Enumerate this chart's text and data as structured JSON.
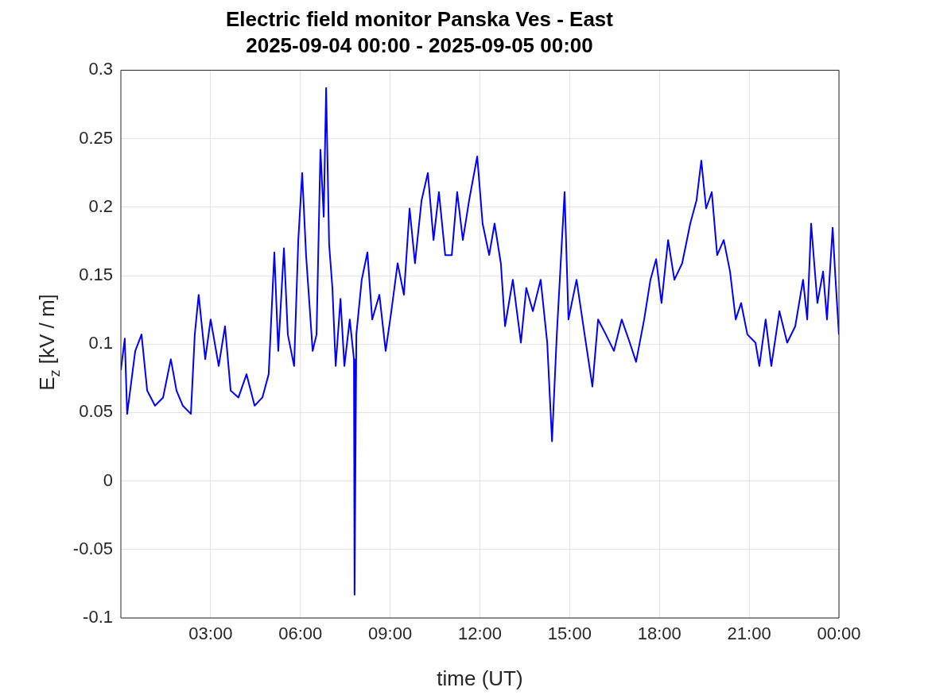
{
  "chart_data": {
    "type": "line",
    "title": "Electric field monitor Panska Ves - East",
    "subtitle": "2025-09-04 00:00 - 2025-09-05 00:00",
    "xlabel": "time (UT)",
    "ylabel": "E$_{z}$ [kV / m]",
    "x": [
      0,
      0.13,
      0.21,
      0.48,
      0.69,
      0.88,
      1.14,
      1.41,
      1.67,
      1.86,
      2.07,
      2.34,
      2.47,
      2.6,
      2.82,
      3.0,
      3.27,
      3.48,
      3.67,
      3.93,
      4.2,
      4.47,
      4.73,
      4.94,
      5.13,
      5.26,
      5.45,
      5.58,
      5.79,
      5.93,
      6.06,
      6.19,
      6.41,
      6.54,
      6.67,
      6.78,
      6.86,
      6.96,
      7.07,
      7.18,
      7.34,
      7.47,
      7.65,
      7.79,
      7.81,
      7.87,
      8.05,
      8.24,
      8.4,
      8.64,
      8.85,
      9.04,
      9.25,
      9.46,
      9.65,
      9.83,
      10.05,
      10.26,
      10.45,
      10.63,
      10.84,
      11.06,
      11.24,
      11.43,
      11.64,
      11.91,
      12.09,
      12.31,
      12.49,
      12.7,
      12.84,
      13.1,
      13.37,
      13.55,
      13.77,
      14.03,
      14.25,
      14.41,
      14.57,
      14.7,
      14.83,
      14.96,
      15.23,
      15.5,
      15.76,
      15.95,
      16.21,
      16.48,
      16.74,
      17.01,
      17.22,
      17.49,
      17.7,
      17.89,
      18.07,
      18.29,
      18.5,
      18.76,
      19.03,
      19.24,
      19.4,
      19.56,
      19.75,
      19.93,
      20.15,
      20.36,
      20.55,
      20.73,
      20.94,
      21.21,
      21.34,
      21.55,
      21.74,
      22.01,
      22.27,
      22.54,
      22.8,
      22.94,
      23.07,
      23.28,
      23.47,
      23.6,
      23.79,
      23.87,
      24.0
    ],
    "series": [
      {
        "color": "#0000ff",
        "values": [
          0.081,
          0.104,
          0.049,
          0.095,
          0.107,
          0.066,
          0.055,
          0.061,
          0.089,
          0.066,
          0.055,
          0.049,
          0.107,
          0.136,
          0.089,
          0.118,
          0.084,
          0.113,
          0.066,
          0.061,
          0.078,
          0.055,
          0.061,
          0.078,
          0.167,
          0.095,
          0.17,
          0.107,
          0.084,
          0.176,
          0.225,
          0.165,
          0.095,
          0.107,
          0.242,
          0.193,
          0.287,
          0.173,
          0.141,
          0.084,
          0.133,
          0.084,
          0.118,
          0.089,
          -0.083,
          0.107,
          0.147,
          0.167,
          0.118,
          0.136,
          0.095,
          0.124,
          0.159,
          0.136,
          0.199,
          0.159,
          0.205,
          0.225,
          0.176,
          0.211,
          0.165,
          0.165,
          0.211,
          0.176,
          0.205,
          0.237,
          0.188,
          0.165,
          0.188,
          0.159,
          0.113,
          0.147,
          0.101,
          0.141,
          0.124,
          0.147,
          0.101,
          0.029,
          0.107,
          0.159,
          0.211,
          0.118,
          0.147,
          0.107,
          0.069,
          0.118,
          0.107,
          0.095,
          0.118,
          0.101,
          0.087,
          0.118,
          0.147,
          0.162,
          0.13,
          0.176,
          0.147,
          0.159,
          0.188,
          0.205,
          0.234,
          0.199,
          0.211,
          0.165,
          0.176,
          0.153,
          0.118,
          0.13,
          0.107,
          0.101,
          0.084,
          0.118,
          0.084,
          0.124,
          0.101,
          0.113,
          0.147,
          0.118,
          0.188,
          0.13,
          0.153,
          0.118,
          0.185,
          0.153,
          0.107
        ]
      }
    ],
    "xlim": [
      0,
      24
    ],
    "xticks": [
      {
        "value": 3,
        "label": "03:00"
      },
      {
        "value": 6,
        "label": "06:00"
      },
      {
        "value": 9,
        "label": "09:00"
      },
      {
        "value": 12,
        "label": "12:00"
      },
      {
        "value": 15,
        "label": "15:00"
      },
      {
        "value": 18,
        "label": "18:00"
      },
      {
        "value": 21,
        "label": "21:00"
      },
      {
        "value": 24,
        "label": "00:00"
      }
    ],
    "ylim": [
      -0.1,
      0.3
    ],
    "yticks": [
      -0.1,
      -0.05,
      0,
      0.05,
      0.1,
      0.15,
      0.2,
      0.25,
      0.3
    ],
    "grid": true
  }
}
